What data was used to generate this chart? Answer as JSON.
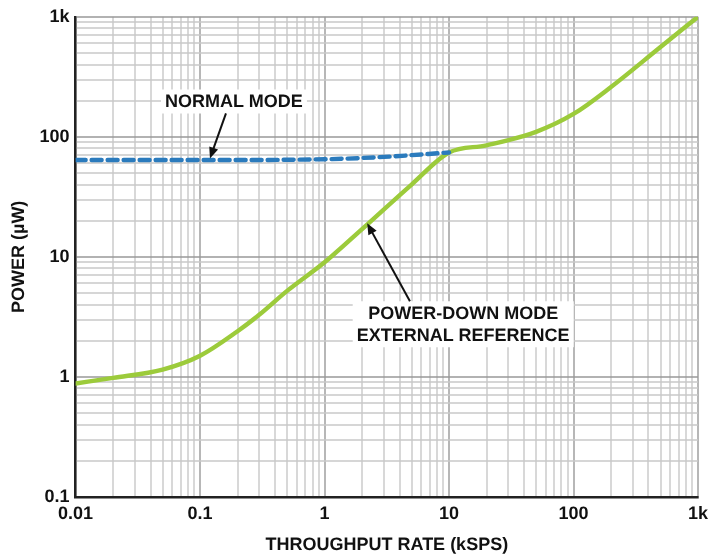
{
  "chart_data": {
    "type": "line",
    "xlabel": "THROUGHPUT RATE (kSPS)",
    "ylabel": "POWER (µW)",
    "log": "xy",
    "grid": true,
    "legend": false,
    "line_style": "solid",
    "marker": "none",
    "xlim": [
      0.01,
      1000
    ],
    "ylim": [
      0.1,
      1000
    ],
    "xticks": [
      0.01,
      {
        "value": 0.02,
        "label": null
      },
      {
        "value": 0.03,
        "label": null
      },
      {
        "value": 0.04,
        "label": null
      },
      {
        "value": 0.05,
        "label": null
      },
      {
        "value": 0.06,
        "label": null
      },
      {
        "value": 0.07,
        "label": null
      },
      {
        "value": 0.08,
        "label": null
      },
      {
        "value": 0.09,
        "label": null
      },
      0.1,
      {
        "value": 0.2,
        "label": null
      },
      {
        "value": 0.3,
        "label": null
      },
      {
        "value": 0.4,
        "label": null
      },
      {
        "value": 0.5,
        "label": null
      },
      {
        "value": 0.6,
        "label": null
      },
      {
        "value": 0.7,
        "label": null
      },
      {
        "value": 0.8,
        "label": null
      },
      {
        "value": 0.9,
        "label": null
      },
      1,
      {
        "value": 2,
        "label": null
      },
      {
        "value": 3,
        "label": null
      },
      {
        "value": 4,
        "label": null
      },
      {
        "value": 5,
        "label": null
      },
      {
        "value": 6,
        "label": null
      },
      {
        "value": 7,
        "label": null
      },
      {
        "value": 8,
        "label": null
      },
      {
        "value": 9,
        "label": null
      },
      10,
      {
        "value": 20,
        "label": null
      },
      {
        "value": 30,
        "label": null
      },
      {
        "value": 40,
        "label": null
      },
      {
        "value": 50,
        "label": null
      },
      {
        "value": 60,
        "label": null
      },
      {
        "value": 70,
        "label": null
      },
      {
        "value": 80,
        "label": null
      },
      {
        "value": 90,
        "label": null
      },
      100,
      {
        "value": 200,
        "label": null
      },
      {
        "value": 300,
        "label": null
      },
      {
        "value": 400,
        "label": null
      },
      {
        "value": 500,
        "label": null
      },
      {
        "value": 600,
        "label": null
      },
      {
        "value": 700,
        "label": null
      },
      {
        "value": 800,
        "label": null
      },
      {
        "value": 900,
        "label": null
      },
      {
        "value": 1000,
        "label": "1k"
      }
    ],
    "yticks": [
      0.1,
      {
        "value": 0.2,
        "label": null
      },
      {
        "value": 0.3,
        "label": null
      },
      {
        "value": 0.4,
        "label": null
      },
      {
        "value": 0.5,
        "label": null
      },
      {
        "value": 0.6,
        "label": null
      },
      {
        "value": 0.7,
        "label": null
      },
      {
        "value": 0.8,
        "label": null
      },
      {
        "value": 0.9,
        "label": null
      },
      1,
      {
        "value": 2,
        "label": null
      },
      {
        "value": 3,
        "label": null
      },
      {
        "value": 4,
        "label": null
      },
      {
        "value": 5,
        "label": null
      },
      {
        "value": 6,
        "label": null
      },
      {
        "value": 7,
        "label": null
      },
      {
        "value": 8,
        "label": null
      },
      {
        "value": 9,
        "label": null
      },
      10,
      {
        "value": 20,
        "label": null
      },
      {
        "value": 30,
        "label": null
      },
      {
        "value": 40,
        "label": null
      },
      {
        "value": 50,
        "label": null
      },
      {
        "value": 60,
        "label": null
      },
      {
        "value": 70,
        "label": null
      },
      {
        "value": 80,
        "label": null
      },
      {
        "value": 90,
        "label": null
      },
      100,
      {
        "value": 200,
        "label": null
      },
      {
        "value": 300,
        "label": null
      },
      {
        "value": 400,
        "label": null
      },
      {
        "value": 500,
        "label": null
      },
      {
        "value": 600,
        "label": null
      },
      {
        "value": 700,
        "label": null
      },
      {
        "value": 800,
        "label": null
      },
      {
        "value": 900,
        "label": null
      },
      {
        "value": 1000,
        "label": "1k"
      }
    ],
    "series": [
      {
        "color": "#2b7bbd",
        "line_style": "dashed",
        "x": [
          0.01,
          0.1,
          1,
          3,
          10
        ],
        "values": [
          64,
          64,
          65,
          68,
          74
        ]
      },
      {
        "color": "#9ccb3b",
        "x": [
          0.01,
          0.02,
          0.05,
          0.1,
          0.2,
          0.3,
          0.5,
          1,
          2,
          5,
          10,
          20,
          50,
          100,
          200,
          500,
          1000
        ],
        "values": [
          0.88,
          0.98,
          1.15,
          1.5,
          2.4,
          3.3,
          5.2,
          9,
          17,
          40,
          74,
          85,
          110,
          155,
          260,
          560,
          1000
        ]
      }
    ],
    "annotations": [
      {
        "text": "NORMAL MODE",
        "x": 0.12,
        "y": 66
      },
      {
        "text": "POWER-DOWN MODE\nEXTERNAL REFERENCE",
        "x": 2.2,
        "y": 19
      }
    ]
  }
}
